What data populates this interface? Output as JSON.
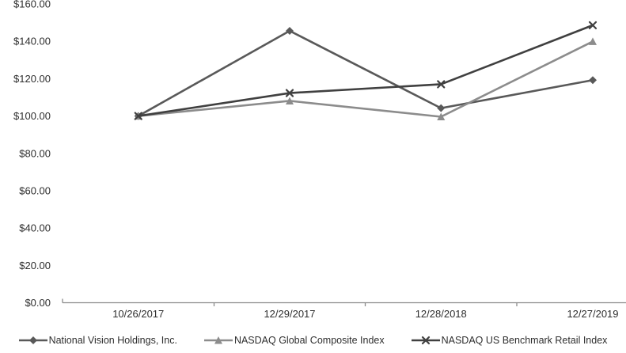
{
  "figure": {
    "background": "#ffffff",
    "axis_color": "#8a8a8a",
    "text_color": "#2e2e2e"
  },
  "chart_data": {
    "type": "line",
    "title": "",
    "xlabel": "",
    "ylabel": "",
    "categories": [
      "10/26/2017",
      "12/29/2017",
      "12/28/2018",
      "12/27/2019"
    ],
    "series": [
      {
        "name": "National Vision Holdings, Inc.",
        "marker": "diamond",
        "color": "#595959",
        "values": [
          100.0,
          145.6,
          104.2,
          119.2
        ]
      },
      {
        "name": "NASDAQ Global Composite Index",
        "marker": "triangle",
        "color": "#8c8c8c",
        "values": [
          100.0,
          108.1,
          99.6,
          139.9
        ]
      },
      {
        "name": "NASDAQ US Benchmark Retail Index",
        "marker": "x",
        "color": "#404040",
        "values": [
          100.0,
          112.3,
          117.0,
          148.6
        ]
      }
    ],
    "ylim": [
      0,
      160
    ],
    "y_tick_step": 20,
    "y_tick_labels": [
      "$0.00",
      "$20.00",
      "$40.00",
      "$60.00",
      "$80.00",
      "$100.00",
      "$120.00",
      "$140.00",
      "$160.00"
    ],
    "grid": false,
    "legend_position": "bottom"
  }
}
